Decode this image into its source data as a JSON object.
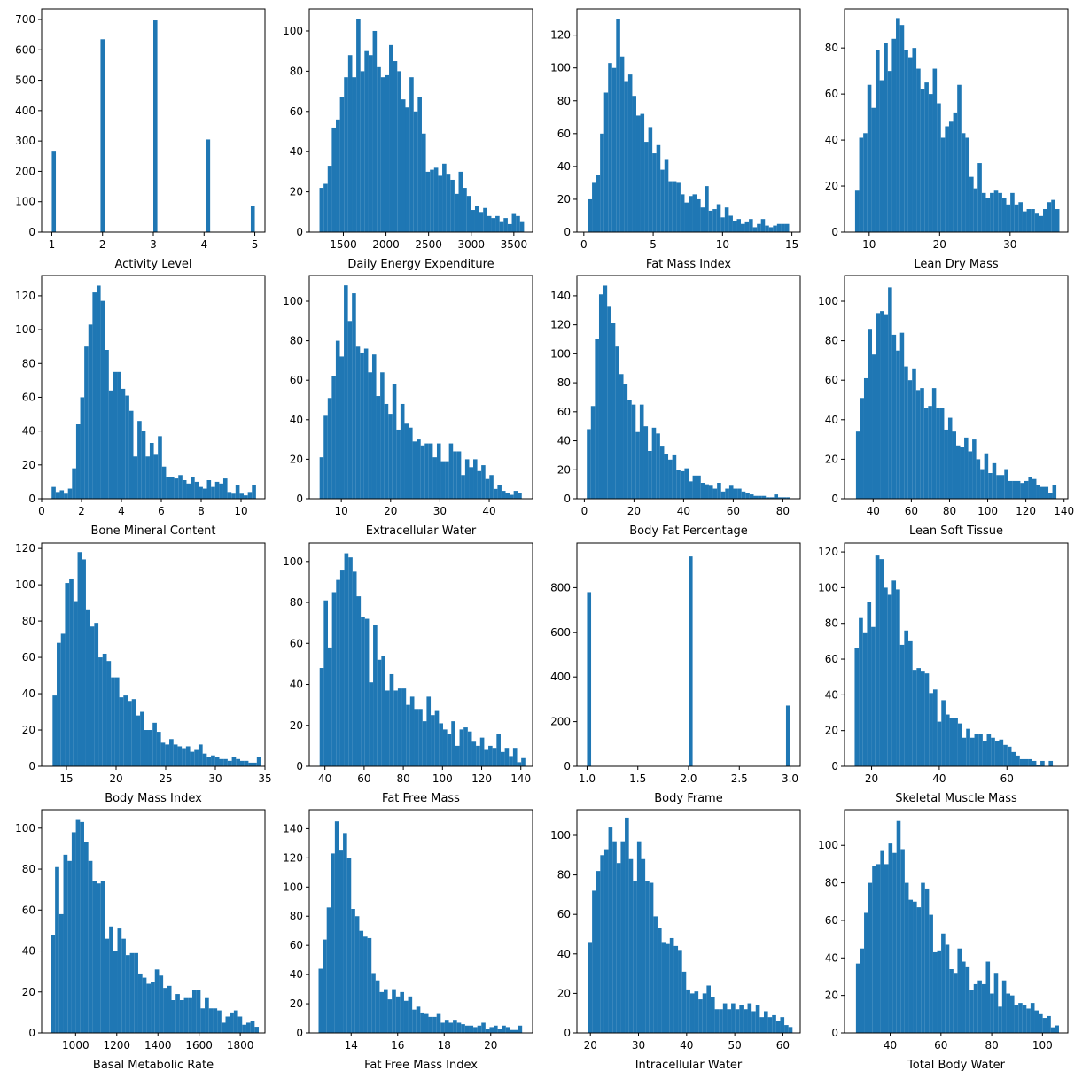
{
  "figure": {
    "bar_color": "#1f77b4"
  },
  "chart_data": [
    {
      "type": "bar",
      "xlabel": "Activity Level",
      "xlim": [
        0.8,
        5.2
      ],
      "ylim": [
        0,
        735
      ],
      "xticks": [
        1,
        2,
        3,
        4,
        5
      ],
      "yticks": [
        0,
        100,
        200,
        300,
        400,
        500,
        600,
        700
      ],
      "bin_start": 1,
      "bin_width": 0.08,
      "values": [
        265,
        0,
        0,
        0,
        0,
        0,
        0,
        0,
        0,
        0,
        0,
        0,
        635,
        0,
        0,
        0,
        0,
        0,
        0,
        0,
        0,
        0,
        0,
        0,
        0,
        697,
        0,
        0,
        0,
        0,
        0,
        0,
        0,
        0,
        0,
        0,
        0,
        0,
        305,
        0,
        0,
        0,
        0,
        0,
        0,
        0,
        0,
        0,
        0,
        85
      ]
    },
    {
      "type": "bar",
      "xlabel": "Daily Energy Expenditure",
      "xlim": [
        1100,
        3720
      ],
      "ylim": [
        0,
        111
      ],
      "xticks": [
        1500,
        2000,
        2500,
        3000,
        3500
      ],
      "yticks": [
        0,
        20,
        40,
        60,
        80,
        100
      ],
      "bin_start": 1220,
      "bin_width": 48,
      "values": [
        22,
        24,
        33,
        52,
        56,
        67,
        77,
        88,
        77,
        106,
        80,
        90,
        88,
        100,
        82,
        77,
        78,
        93,
        85,
        80,
        66,
        62,
        77,
        60,
        67,
        49,
        30,
        31,
        32,
        28,
        34,
        29,
        26,
        19,
        30,
        22,
        18,
        11,
        13,
        10,
        12,
        8,
        7,
        8,
        5,
        7,
        4,
        9,
        8,
        5
      ]
    },
    {
      "type": "bar",
      "xlabel": "Fat Mass Index",
      "xlim": [
        -0.5,
        15.6
      ],
      "ylim": [
        0,
        136
      ],
      "xticks": [
        0,
        5,
        10,
        15
      ],
      "yticks": [
        0,
        20,
        40,
        60,
        80,
        100,
        120
      ],
      "bin_start": 0.3,
      "bin_width": 0.29,
      "values": [
        20,
        30,
        35,
        60,
        85,
        103,
        100,
        130,
        107,
        92,
        96,
        83,
        71,
        72,
        55,
        64,
        48,
        53,
        38,
        44,
        31,
        31,
        30,
        23,
        18,
        22,
        23,
        20,
        15,
        28,
        13,
        14,
        17,
        9,
        15,
        10,
        7,
        8,
        5,
        6,
        8,
        3,
        5,
        8,
        4,
        3,
        4,
        5,
        5,
        5
      ]
    },
    {
      "type": "bar",
      "xlabel": "Lean Dry Mass",
      "xlim": [
        6.5,
        38.2
      ],
      "ylim": [
        0,
        97
      ],
      "xticks": [
        10,
        20,
        30
      ],
      "yticks": [
        0,
        20,
        40,
        60,
        80
      ],
      "bin_start": 8.0,
      "bin_width": 0.58,
      "values": [
        18,
        41,
        43,
        64,
        54,
        79,
        66,
        82,
        70,
        84,
        93,
        90,
        79,
        76,
        80,
        71,
        62,
        65,
        60,
        71,
        56,
        41,
        46,
        48,
        52,
        64,
        43,
        41,
        24,
        19,
        30,
        17,
        15,
        17,
        18,
        17,
        15,
        12,
        17,
        12,
        13,
        9,
        10,
        10,
        8,
        7,
        10,
        13,
        14,
        10
      ]
    },
    {
      "type": "bar",
      "xlabel": "Bone Mineral Content",
      "xlim": [
        0,
        11.2
      ],
      "ylim": [
        0,
        132
      ],
      "xticks": [
        0,
        2,
        4,
        6,
        8,
        10
      ],
      "yticks": [
        0,
        20,
        40,
        60,
        80,
        100,
        120
      ],
      "bin_start": 0.5,
      "bin_width": 0.205,
      "values": [
        7,
        4,
        5,
        3,
        6,
        18,
        44,
        60,
        90,
        103,
        122,
        126,
        117,
        88,
        64,
        75,
        75,
        65,
        61,
        52,
        25,
        46,
        40,
        25,
        33,
        26,
        37,
        19,
        13,
        13,
        12,
        14,
        11,
        9,
        13,
        10,
        7,
        6,
        11,
        7,
        10,
        9,
        12,
        4,
        3,
        8,
        3,
        2,
        4,
        8
      ]
    },
    {
      "type": "bar",
      "xlabel": "Extracellular Water",
      "xlim": [
        3.5,
        48.8
      ],
      "ylim": [
        0,
        113
      ],
      "xticks": [
        10,
        20,
        30,
        40
      ],
      "yticks": [
        0,
        20,
        40,
        60,
        80,
        100
      ],
      "bin_start": 5.6,
      "bin_width": 0.82,
      "values": [
        21,
        42,
        51,
        62,
        80,
        72,
        108,
        90,
        104,
        77,
        74,
        76,
        64,
        73,
        52,
        64,
        48,
        43,
        58,
        35,
        48,
        38,
        36,
        29,
        30,
        27,
        28,
        28,
        21,
        28,
        19,
        19,
        28,
        24,
        24,
        12,
        20,
        16,
        20,
        14,
        17,
        10,
        12,
        5,
        7,
        4,
        3,
        2,
        4,
        3
      ]
    },
    {
      "type": "bar",
      "xlabel": "Body Fat Percentage",
      "xlim": [
        -3,
        87
      ],
      "ylim": [
        0,
        154
      ],
      "xticks": [
        0,
        20,
        40,
        60,
        80
      ],
      "yticks": [
        0,
        20,
        40,
        60,
        80,
        100,
        120,
        140
      ],
      "bin_start": 1.0,
      "bin_width": 1.64,
      "values": [
        48,
        64,
        110,
        141,
        147,
        133,
        121,
        105,
        86,
        79,
        68,
        65,
        46,
        65,
        50,
        33,
        49,
        45,
        36,
        31,
        27,
        30,
        20,
        19,
        21,
        12,
        16,
        16,
        11,
        10,
        9,
        7,
        11,
        5,
        7,
        9,
        7,
        7,
        5,
        4,
        3,
        2,
        2,
        2,
        1,
        1,
        3,
        1,
        1,
        1
      ]
    },
    {
      "type": "bar",
      "xlabel": "Lean Soft Tissue",
      "xlim": [
        25,
        142
      ],
      "ylim": [
        0,
        113
      ],
      "xticks": [
        40,
        60,
        80,
        100,
        120,
        140
      ],
      "yticks": [
        0,
        20,
        40,
        60,
        80,
        100
      ],
      "bin_start": 31,
      "bin_width": 2.1,
      "values": [
        34,
        51,
        61,
        86,
        73,
        94,
        95,
        93,
        107,
        83,
        75,
        84,
        67,
        60,
        66,
        55,
        56,
        46,
        47,
        56,
        46,
        46,
        35,
        41,
        34,
        27,
        26,
        31,
        24,
        30,
        20,
        15,
        23,
        13,
        18,
        12,
        12,
        15,
        9,
        9,
        9,
        8,
        9,
        11,
        10,
        7,
        6,
        6,
        3,
        7
      ]
    },
    {
      "type": "bar",
      "xlabel": "Body Mass Index",
      "xlim": [
        12.5,
        35
      ],
      "ylim": [
        0,
        123
      ],
      "xticks": [
        15,
        20,
        25,
        30,
        35
      ],
      "yticks": [
        0,
        20,
        40,
        60,
        80,
        100,
        120
      ],
      "bin_start": 13.6,
      "bin_width": 0.42,
      "values": [
        39,
        68,
        73,
        101,
        103,
        91,
        118,
        114,
        86,
        77,
        79,
        60,
        62,
        58,
        49,
        49,
        38,
        39,
        36,
        37,
        28,
        30,
        20,
        20,
        24,
        19,
        13,
        12,
        15,
        12,
        11,
        10,
        11,
        8,
        9,
        12,
        7,
        5,
        6,
        5,
        4,
        4,
        3,
        5,
        4,
        3,
        3,
        2,
        2,
        5
      ]
    },
    {
      "type": "bar",
      "xlabel": "Fat Free Mass",
      "xlim": [
        32,
        146
      ],
      "ylim": [
        0,
        109
      ],
      "xticks": [
        40,
        60,
        80,
        100,
        120,
        140
      ],
      "yticks": [
        0,
        20,
        40,
        60,
        80,
        100
      ],
      "bin_start": 37.3,
      "bin_width": 2.1,
      "values": [
        48,
        81,
        58,
        85,
        91,
        96,
        104,
        102,
        95,
        83,
        73,
        72,
        41,
        69,
        52,
        54,
        37,
        45,
        37,
        38,
        38,
        30,
        34,
        28,
        28,
        22,
        34,
        25,
        27,
        21,
        18,
        16,
        22,
        10,
        18,
        19,
        17,
        12,
        10,
        14,
        8,
        10,
        9,
        16,
        7,
        9,
        5,
        9,
        2,
        4
      ]
    },
    {
      "type": "bar",
      "xlabel": "Body Frame",
      "xlim": [
        0.9,
        3.1
      ],
      "ylim": [
        0,
        1000
      ],
      "xticks": [
        1.0,
        1.5,
        2.0,
        2.5,
        3.0
      ],
      "xtick_labels": [
        "1.0",
        "1.5",
        "2.0",
        "2.5",
        "3.0"
      ],
      "yticks": [
        0,
        200,
        400,
        600,
        800
      ],
      "bin_start": 1,
      "bin_width": 0.04,
      "values": [
        780,
        0,
        0,
        0,
        0,
        0,
        0,
        0,
        0,
        0,
        0,
        0,
        0,
        0,
        0,
        0,
        0,
        0,
        0,
        0,
        0,
        0,
        0,
        0,
        0,
        940,
        0,
        0,
        0,
        0,
        0,
        0,
        0,
        0,
        0,
        0,
        0,
        0,
        0,
        0,
        0,
        0,
        0,
        0,
        0,
        0,
        0,
        0,
        0,
        272
      ]
    },
    {
      "type": "bar",
      "xlabel": "Skeletal Muscle Mass",
      "xlim": [
        12,
        78
      ],
      "ylim": [
        0,
        125
      ],
      "xticks": [
        20,
        40,
        60
      ],
      "yticks": [
        0,
        20,
        40,
        60,
        80,
        100,
        120
      ],
      "bin_start": 15,
      "bin_width": 1.22,
      "values": [
        66,
        83,
        75,
        92,
        78,
        118,
        116,
        100,
        96,
        104,
        99,
        68,
        76,
        70,
        54,
        55,
        53,
        52,
        41,
        43,
        25,
        37,
        29,
        27,
        27,
        24,
        16,
        21,
        16,
        18,
        18,
        14,
        18,
        16,
        14,
        15,
        12,
        11,
        8,
        6,
        4,
        4,
        4,
        3,
        1,
        3,
        0,
        3,
        0,
        0
      ]
    },
    {
      "type": "bar",
      "xlabel": "Basal Metabolic Rate",
      "xlim": [
        835,
        1920
      ],
      "ylim": [
        0,
        109
      ],
      "xticks": [
        1000,
        1200,
        1400,
        1600,
        1800
      ],
      "yticks": [
        0,
        20,
        40,
        60,
        80,
        100
      ],
      "bin_start": 880,
      "bin_width": 20.2,
      "values": [
        48,
        81,
        58,
        87,
        84,
        98,
        104,
        103,
        93,
        84,
        74,
        73,
        74,
        46,
        52,
        40,
        51,
        46,
        38,
        39,
        39,
        29,
        27,
        24,
        25,
        31,
        28,
        22,
        23,
        16,
        19,
        16,
        17,
        17,
        21,
        21,
        12,
        17,
        12,
        12,
        11,
        5,
        8,
        10,
        11,
        8,
        4,
        5,
        6,
        3
      ]
    },
    {
      "type": "bar",
      "xlabel": "Fat Free Mass Index",
      "xlim": [
        12.2,
        21.8
      ],
      "ylim": [
        0,
        153
      ],
      "xticks": [
        14,
        16,
        18,
        20
      ],
      "yticks": [
        0,
        20,
        40,
        60,
        80,
        100,
        120,
        140
      ],
      "bin_start": 12.6,
      "bin_width": 0.175,
      "values": [
        44,
        64,
        86,
        123,
        145,
        125,
        137,
        120,
        85,
        80,
        70,
        66,
        65,
        41,
        36,
        28,
        30,
        23,
        30,
        25,
        28,
        22,
        25,
        16,
        18,
        14,
        13,
        11,
        11,
        13,
        7,
        9,
        7,
        9,
        7,
        6,
        5,
        5,
        4,
        5,
        7,
        3,
        4,
        5,
        3,
        5,
        4,
        2,
        2,
        5
      ]
    },
    {
      "type": "bar",
      "xlabel": "Intracellular Water",
      "xlim": [
        17.2,
        63.6
      ],
      "ylim": [
        0,
        113
      ],
      "xticks": [
        20,
        30,
        40,
        50,
        60
      ],
      "yticks": [
        0,
        20,
        40,
        60,
        80,
        100
      ],
      "bin_start": 19.5,
      "bin_width": 0.85,
      "values": [
        46,
        72,
        82,
        90,
        93,
        104,
        97,
        86,
        97,
        109,
        88,
        77,
        97,
        88,
        77,
        76,
        59,
        53,
        46,
        45,
        48,
        44,
        42,
        31,
        22,
        20,
        21,
        17,
        20,
        24,
        18,
        12,
        12,
        15,
        12,
        15,
        12,
        14,
        12,
        15,
        11,
        14,
        8,
        11,
        8,
        9,
        6,
        8,
        4,
        3
      ]
    },
    {
      "type": "bar",
      "xlabel": "Total Body Water",
      "xlim": [
        22,
        110
      ],
      "ylim": [
        0,
        119
      ],
      "xticks": [
        40,
        60,
        80,
        100
      ],
      "yticks": [
        0,
        20,
        40,
        60,
        80,
        100
      ],
      "bin_start": 26.5,
      "bin_width": 1.6,
      "values": [
        37,
        45,
        64,
        80,
        89,
        90,
        97,
        90,
        101,
        96,
        113,
        98,
        80,
        71,
        70,
        67,
        80,
        77,
        63,
        43,
        44,
        53,
        47,
        34,
        32,
        45,
        38,
        35,
        23,
        26,
        28,
        26,
        38,
        21,
        32,
        14,
        28,
        21,
        20,
        15,
        16,
        15,
        13,
        16,
        12,
        10,
        8,
        9,
        3,
        4
      ]
    }
  ]
}
